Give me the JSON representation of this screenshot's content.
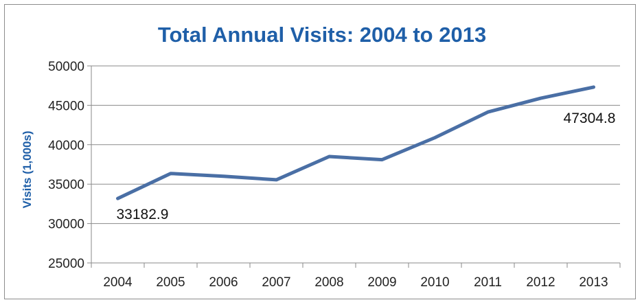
{
  "chart_data": {
    "type": "line",
    "title": "Total Annual Visits: 2004 to 2013",
    "xlabel": "",
    "ylabel": "Visits (1,000s)",
    "categories": [
      "2004",
      "2005",
      "2006",
      "2007",
      "2008",
      "2009",
      "2010",
      "2011",
      "2012",
      "2013"
    ],
    "series": [
      {
        "values": [
          33182.9,
          36350,
          36000,
          35550,
          38500,
          38100,
          40900,
          44150,
          45900,
          47304.8
        ]
      }
    ],
    "ylim": [
      25000,
      50000
    ],
    "yticks": [
      "25000",
      "30000",
      "35000",
      "40000",
      "45000",
      "50000"
    ],
    "data_labels": [
      {
        "index": 0,
        "text": "33182.9"
      },
      {
        "index": 9,
        "text": "47304.8"
      }
    ],
    "grid": true,
    "legend": "none",
    "colors": {
      "line": "#4a6fa5",
      "title": "#1f5fa8"
    }
  }
}
